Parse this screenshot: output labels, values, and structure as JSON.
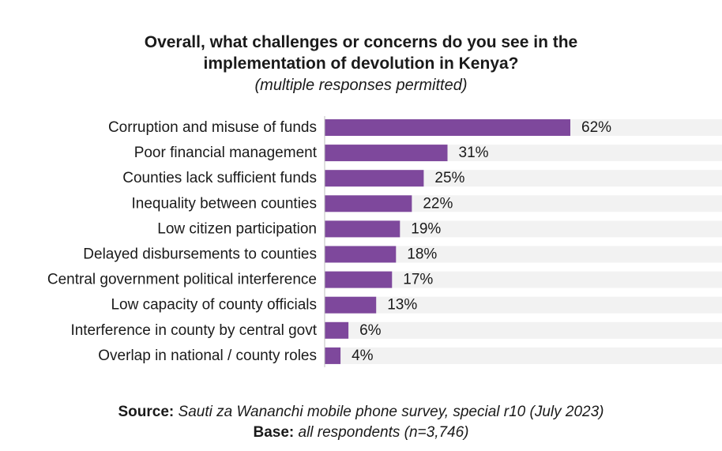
{
  "chart_data": {
    "type": "bar",
    "orientation": "horizontal",
    "title_line1": "Overall, what challenges or concerns do you see in the",
    "title_line2": "implementation of devolution in Kenya?",
    "subtitle": "(multiple responses permitted)",
    "categories": [
      "Corruption and misuse of funds",
      "Poor financial management",
      "Counties lack sufficient funds",
      "Inequality between counties",
      "Low citizen participation",
      "Delayed disbursements to counties",
      "Central government political interference",
      "Low capacity of county officials",
      "Interference in county by central govt",
      "Overlap in national / county roles"
    ],
    "values": [
      62,
      31,
      25,
      22,
      19,
      18,
      17,
      13,
      6,
      4
    ],
    "value_labels": [
      "62%",
      "31%",
      "25%",
      "22%",
      "19%",
      "18%",
      "17%",
      "13%",
      "6%",
      "4%"
    ],
    "xlim": [
      0,
      100
    ],
    "unit": "%",
    "bar_color": "#7e489c",
    "track_color": "#f2f2f2"
  },
  "footer": {
    "source_label": "Source:",
    "source_text": "Sauti za Wananchi mobile phone survey, special r10 (July 2023)",
    "base_label": "Base:",
    "base_text": "all respondents (n=3,746)"
  }
}
